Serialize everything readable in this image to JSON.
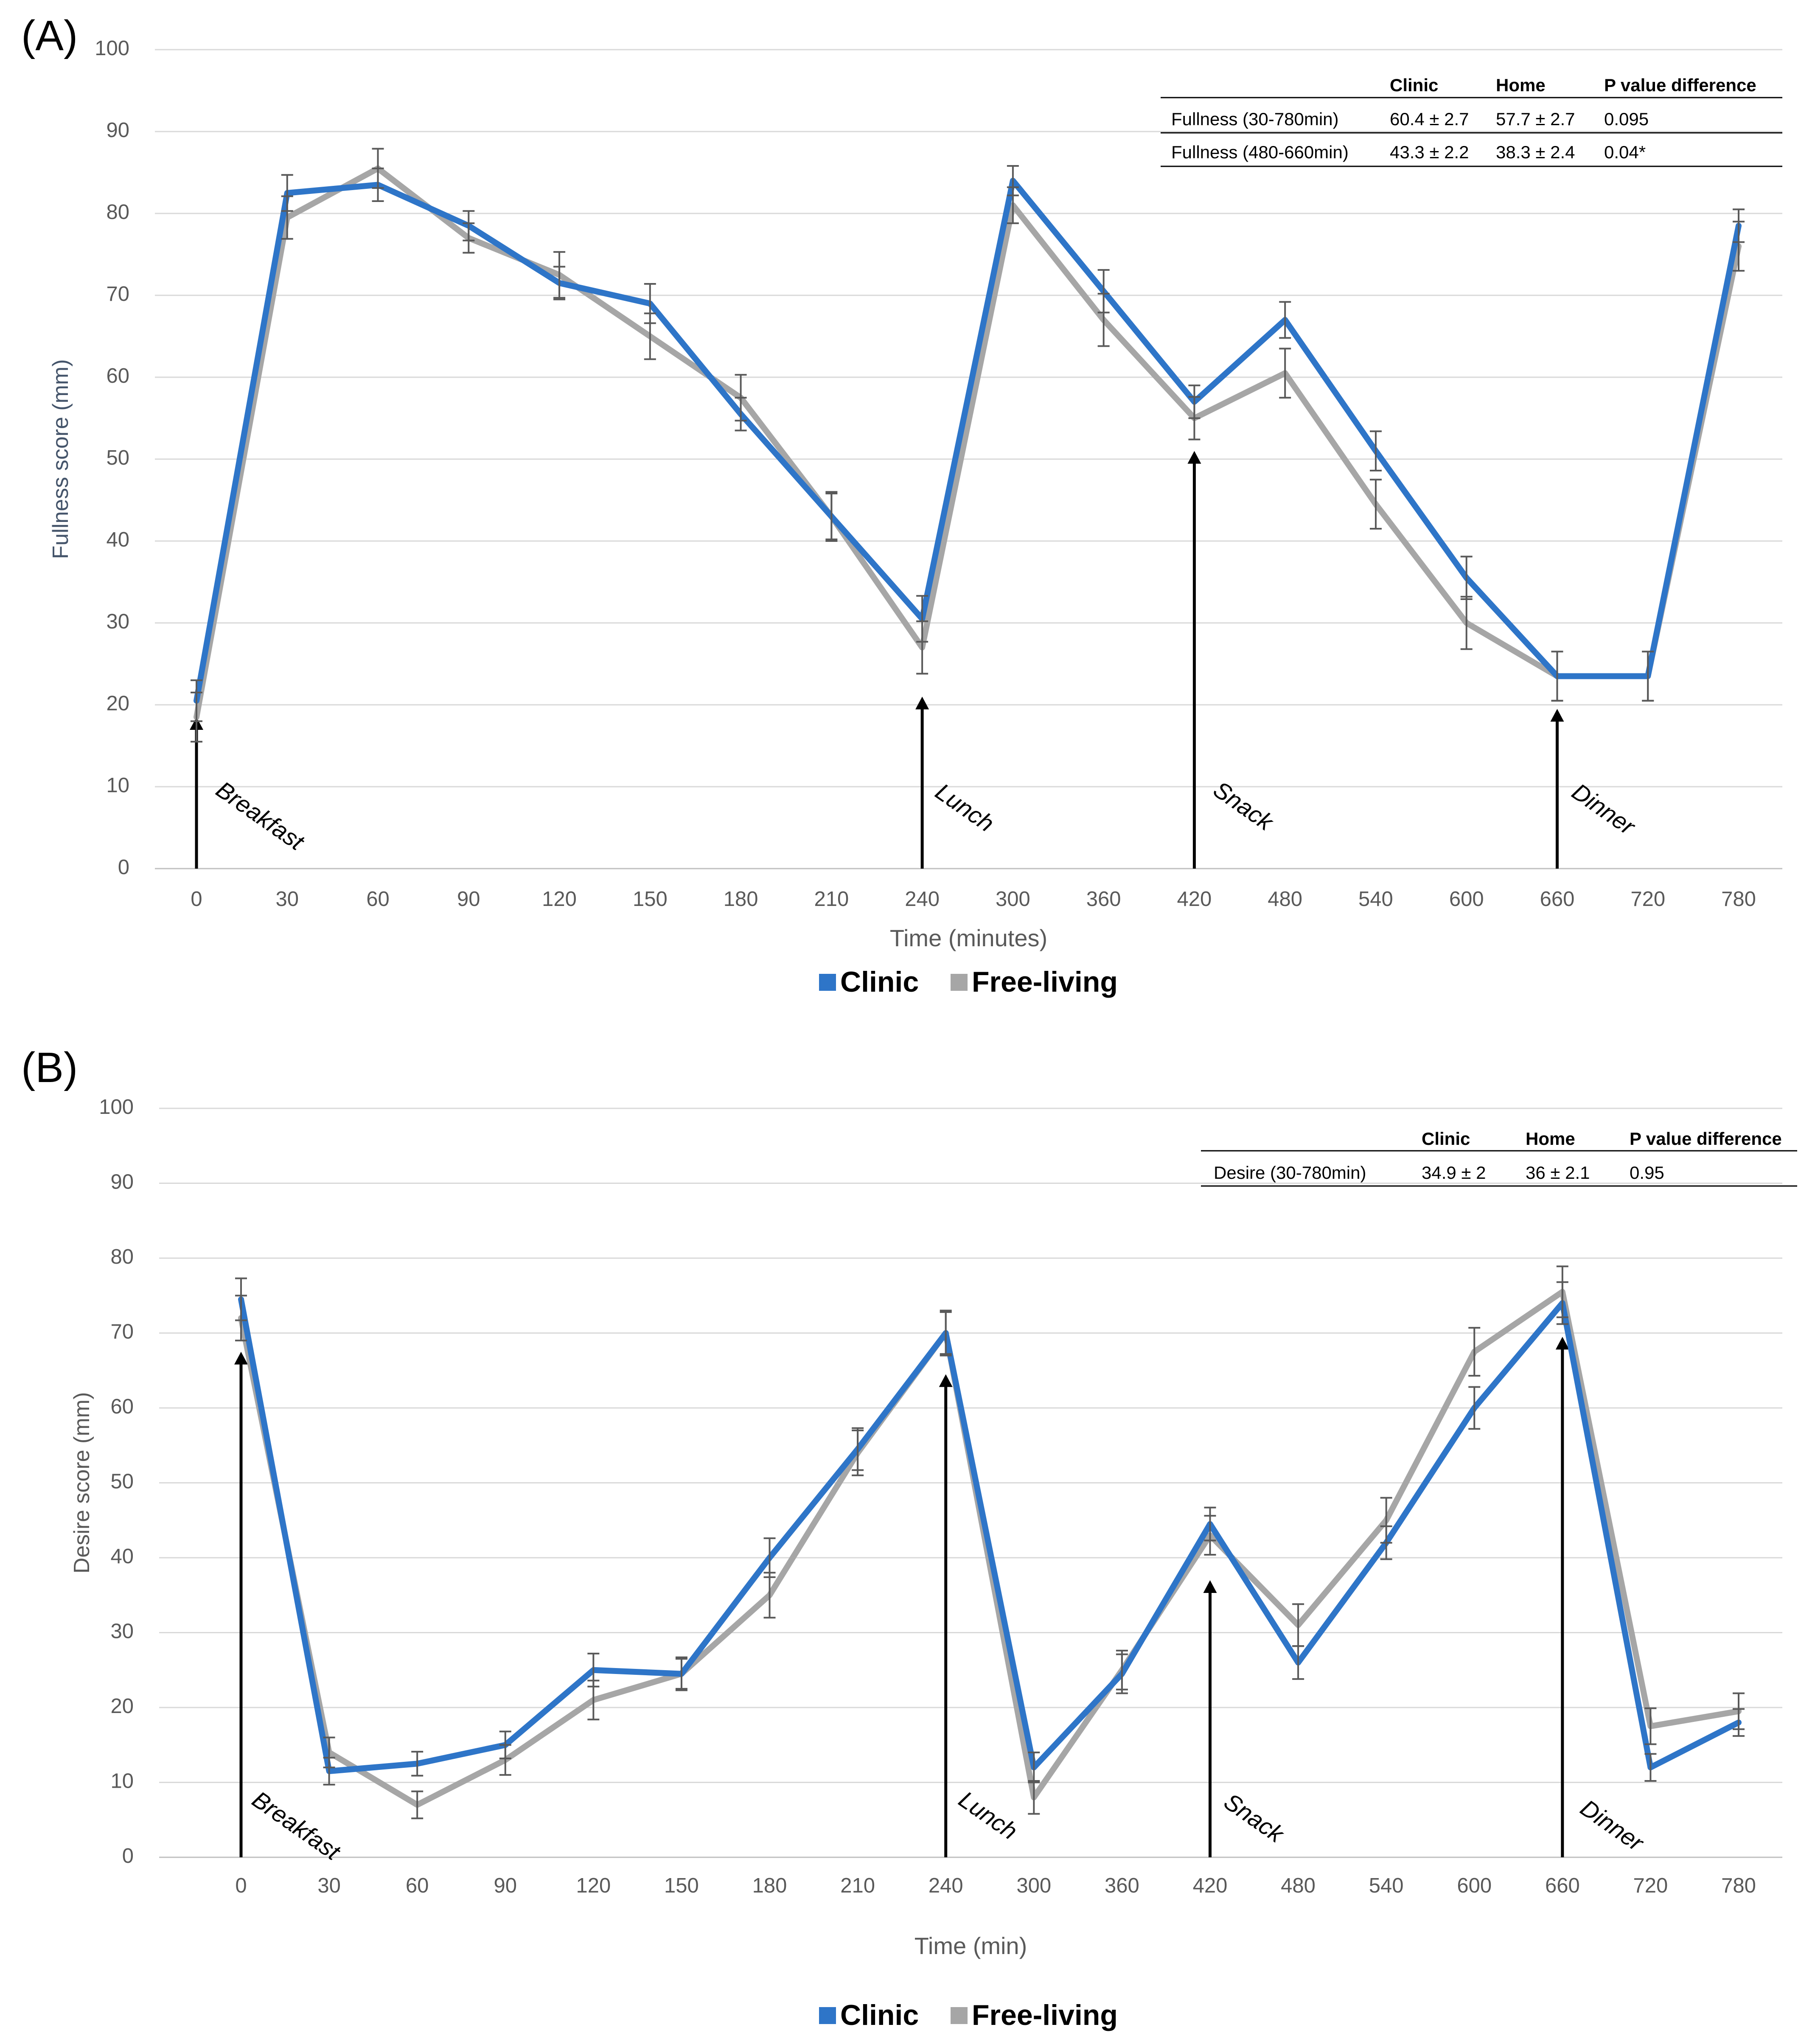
{
  "chart_data": [
    {
      "type": "line",
      "panel_label": "(A)",
      "title": "",
      "xlabel": "Time (minutes)",
      "ylabel": "Fullness score (mm)",
      "ylim": [
        0,
        100
      ],
      "yticks": [
        0,
        10,
        20,
        30,
        40,
        50,
        60,
        70,
        80,
        90,
        100
      ],
      "categories": [
        "0",
        "30",
        "60",
        "90",
        "120",
        "150",
        "180",
        "210",
        "240",
        "300",
        "360",
        "420",
        "480",
        "540",
        "600",
        "660",
        "720",
        "780"
      ],
      "grid": true,
      "legend_position": "bottom-center",
      "series": [
        {
          "name": "Clinic",
          "color": "#2e75c8",
          "values": [
            20.5,
            82.5,
            83.5,
            78.5,
            71.5,
            69,
            55.5,
            43,
            30.5,
            84,
            70.5,
            57,
            67,
            51,
            35.5,
            23.5,
            23.5,
            78.5
          ],
          "errors": [
            2.5,
            2.2,
            2.0,
            1.8,
            2.0,
            2.4,
            2.0,
            2.8,
            2.8,
            1.8,
            2.6,
            2.0,
            2.2,
            2.4,
            2.6,
            3.0,
            3.0,
            2.0
          ]
        },
        {
          "name": "Free-living",
          "color": "#a6a6a6",
          "values": [
            18.5,
            79.5,
            85.5,
            77,
            72.5,
            65,
            57.5,
            43,
            27,
            81,
            67,
            55,
            60.5,
            44.5,
            30,
            23.5,
            23.5,
            76
          ],
          "errors": [
            3.0,
            2.6,
            2.4,
            1.8,
            2.8,
            2.8,
            2.8,
            3.0,
            3.2,
            2.2,
            3.2,
            2.6,
            3.0,
            3.0,
            3.2,
            3.0,
            3.0,
            3.0
          ]
        }
      ],
      "annotations": [
        {
          "text": "Breakfast",
          "x": "0"
        },
        {
          "text": "Lunch",
          "x": "240"
        },
        {
          "text": "Snack",
          "x": "420"
        },
        {
          "text": "Dinner",
          "x": "660"
        }
      ],
      "annotation_arrow_tops": [
        18.5,
        21,
        51,
        19.5
      ],
      "table": {
        "header": [
          "Clinic",
          "Home",
          "P value difference"
        ],
        "rows": [
          {
            "label": "Fullness (30-780min)",
            "cells": [
              "60.4 ± 2.7",
              "57.7 ± 2.7",
              "0.095"
            ]
          },
          {
            "label": "Fullness (480-660min)",
            "cells": [
              "43.3 ± 2.2",
              "38.3 ± 2.4",
              "0.04*"
            ]
          }
        ]
      }
    },
    {
      "type": "line",
      "panel_label": "(B)",
      "title": "",
      "xlabel": "Time (min)",
      "ylabel": "Desire score (mm)",
      "ylim": [
        0,
        100
      ],
      "yticks": [
        0,
        10,
        20,
        30,
        40,
        50,
        60,
        70,
        80,
        90,
        100
      ],
      "categories": [
        "0",
        "30",
        "60",
        "90",
        "120",
        "150",
        "180",
        "210",
        "240",
        "300",
        "360",
        "420",
        "480",
        "540",
        "600",
        "660",
        "720",
        "780"
      ],
      "grid": true,
      "legend_position": "bottom-center",
      "series": [
        {
          "name": "Clinic",
          "color": "#2e75c8",
          "values": [
            74.5,
            11.5,
            12.5,
            15,
            25,
            24.5,
            40,
            54.5,
            70,
            12,
            24.5,
            44.5,
            26,
            42,
            60,
            74,
            12,
            18
          ],
          "errors": [
            2.8,
            1.8,
            1.6,
            1.8,
            2.2,
            2.0,
            2.6,
            2.8,
            2.8,
            2.0,
            2.6,
            2.2,
            2.2,
            2.2,
            2.8,
            2.8,
            1.8,
            1.8
          ]
        },
        {
          "name": "Free-living",
          "color": "#a6a6a6",
          "values": [
            72,
            14,
            7,
            13,
            21,
            24.5,
            35,
            54,
            70,
            8,
            25,
            43,
            31,
            45,
            67.5,
            75.5,
            17.5,
            19.5
          ],
          "errors": [
            3.0,
            2.0,
            1.8,
            2.0,
            2.6,
            2.2,
            3.0,
            3.0,
            3.0,
            2.2,
            2.6,
            2.6,
            2.8,
            3.0,
            3.2,
            3.4,
            2.4,
            2.4
          ]
        }
      ],
      "annotations": [
        {
          "text": "Breakfast",
          "x": "0"
        },
        {
          "text": "Lunch",
          "x": "240"
        },
        {
          "text": "Snack",
          "x": "420"
        },
        {
          "text": "Dinner",
          "x": "660"
        }
      ],
      "annotation_arrow_tops": [
        67.5,
        64.5,
        37,
        69.5
      ],
      "table": {
        "header": [
          "Clinic",
          "Home",
          "P value difference"
        ],
        "rows": [
          {
            "label": "Desire (30-780min)",
            "cells": [
              "34.9 ± 2",
              "36 ± 2.1",
              "0.95"
            ]
          }
        ]
      }
    }
  ]
}
